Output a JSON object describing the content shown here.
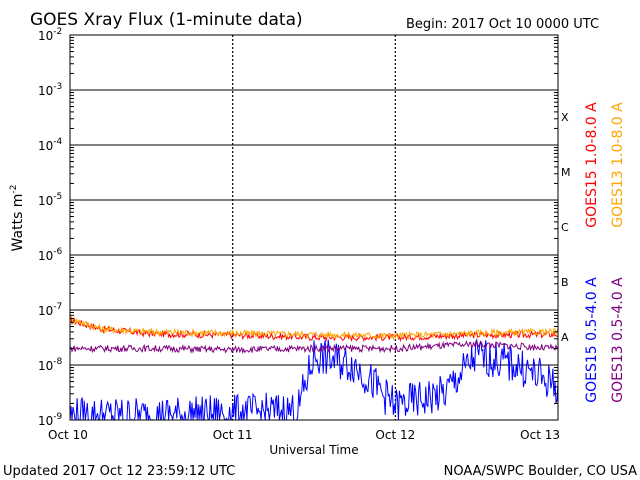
{
  "chart_data": {
    "type": "line",
    "title": "GOES Xray Flux (1-minute data)",
    "begin_label": "Begin:  2017 Oct 10 0000 UTC",
    "xlabel": "Universal Time",
    "ylabel": "Watts m",
    "ylabel_superscript": "-2",
    "y_scale": "log",
    "ylim": [
      1e-09,
      0.01
    ],
    "x_range": [
      "Oct 10",
      "Oct 13"
    ],
    "x_ticks": [
      "Oct 10",
      "Oct 11",
      "Oct 12",
      "Oct 13"
    ],
    "y_ticks": [
      {
        "base": "10",
        "exp": "-2"
      },
      {
        "base": "10",
        "exp": "-3"
      },
      {
        "base": "10",
        "exp": "-4"
      },
      {
        "base": "10",
        "exp": "-5"
      },
      {
        "base": "10",
        "exp": "-6"
      },
      {
        "base": "10",
        "exp": "-7"
      },
      {
        "base": "10",
        "exp": "-8"
      },
      {
        "base": "10",
        "exp": "-9"
      }
    ],
    "flare_classes": [
      {
        "label": "X",
        "level": 0.0001
      },
      {
        "label": "M",
        "level": 1e-05
      },
      {
        "label": "C",
        "level": 1e-06
      },
      {
        "label": "B",
        "level": 1e-07
      },
      {
        "label": "A",
        "level": 1e-08
      }
    ],
    "grid": true,
    "series": [
      {
        "name": "GOES15 1.0-8.0 A",
        "color": "#ff0000",
        "days": [
          0,
          0.2,
          0.5,
          1.0,
          1.5,
          2.0,
          2.5,
          3.0
        ],
        "values": [
          6.5e-08,
          4.5e-08,
          3.7e-08,
          3.5e-08,
          3.2e-08,
          3.2e-08,
          3.5e-08,
          3.6e-08
        ]
      },
      {
        "name": "GOES13 1.0-8.0 A",
        "color": "#ffa500",
        "days": [
          0,
          0.2,
          0.5,
          1.0,
          1.5,
          2.0,
          2.5,
          3.0
        ],
        "values": [
          7e-08,
          4.5e-08,
          4e-08,
          3.8e-08,
          3.6e-08,
          3.4e-08,
          3.8e-08,
          4e-08
        ]
      },
      {
        "name": "GOES15 0.5-4.0 A",
        "color": "#0000ff",
        "days": [
          0,
          0.5,
          1.0,
          1.4,
          1.5,
          1.75,
          2.0,
          2.3,
          2.5,
          2.75,
          3.0
        ],
        "values": [
          1.2e-09,
          1.2e-09,
          1.3e-09,
          1.5e-09,
          1.5e-08,
          1e-08,
          1.8e-09,
          3e-09,
          1.5e-08,
          1e-08,
          4e-09
        ]
      },
      {
        "name": "GOES13 0.5-4.0 A",
        "color": "#800080",
        "days": [
          0,
          0.5,
          1.0,
          1.5,
          2.0,
          2.5,
          3.0
        ],
        "values": [
          2e-08,
          2e-08,
          1.9e-08,
          2e-08,
          2e-08,
          2.4e-08,
          2e-08
        ]
      }
    ]
  },
  "footer": {
    "updated": "Updated 2017 Oct 12 23:59:12 UTC",
    "credit": "NOAA/SWPC Boulder, CO USA"
  }
}
